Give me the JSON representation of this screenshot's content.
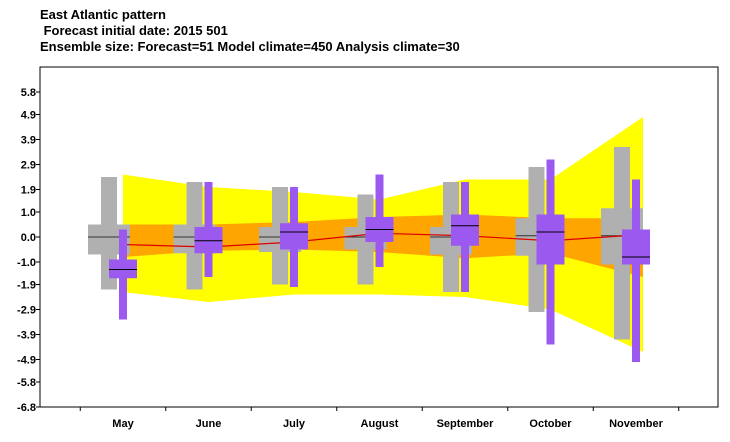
{
  "header": {
    "title": "East Atlantic pattern",
    "subtitle": " Forecast initial date: 2015 501",
    "ensemble": "Ensemble size: Forecast=51 Model climate=450 Analysis climate=30"
  },
  "colors": {
    "outer_band": "#ffff00",
    "inner_band": "#ffa500",
    "median_line": "#dd0000",
    "climate_box": "#b0b0b0",
    "forecast_box": "#9b59f0"
  },
  "chart_data": {
    "type": "box",
    "title": "East Atlantic pattern",
    "categories": [
      "May",
      "June",
      "July",
      "August",
      "September",
      "October",
      "November"
    ],
    "ylim": [
      -6.8,
      6.8
    ],
    "yticks": [
      "5.8",
      "4.9",
      "3.9",
      "2.9",
      "1.9",
      "1.0",
      "0.0",
      "-1.0",
      "-1.9",
      "-2.9",
      "-3.9",
      "-4.9",
      "-5.8",
      "-6.8"
    ],
    "ytick_values": [
      5.8,
      4.9,
      3.9,
      2.9,
      1.9,
      1.0,
      0.0,
      -1.0,
      -1.9,
      -2.9,
      -3.9,
      -4.9,
      -5.8,
      -6.8
    ],
    "analysis_climate_band": {
      "outer": {
        "high": [
          2.5,
          2.0,
          1.8,
          1.5,
          2.3,
          2.3,
          4.8
        ],
        "low": [
          -2.2,
          -2.6,
          -2.3,
          -2.3,
          -2.4,
          -2.9,
          -4.6
        ]
      },
      "inner": {
        "high": [
          0.5,
          0.5,
          0.6,
          0.8,
          0.9,
          0.75,
          0.75
        ],
        "low": [
          -0.8,
          -0.55,
          -0.5,
          -0.6,
          -0.85,
          -0.65,
          -1.6
        ]
      },
      "median": [
        -0.3,
        -0.4,
        -0.2,
        0.15,
        0.05,
        -0.15,
        0.1
      ]
    },
    "model_climate": {
      "whisker_high": [
        2.4,
        2.2,
        2.0,
        1.7,
        2.2,
        2.8,
        3.6
      ],
      "box_high": [
        0.5,
        0.5,
        0.4,
        0.4,
        0.4,
        0.75,
        1.15
      ],
      "median": [
        0.0,
        0.0,
        0.0,
        0.0,
        0.0,
        0.05,
        0.05
      ],
      "box_low": [
        -0.7,
        -0.65,
        -0.6,
        -0.5,
        -0.7,
        -0.75,
        -1.1
      ],
      "whisker_low": [
        -2.1,
        -2.1,
        -1.9,
        -1.9,
        -2.2,
        -3.0,
        -4.1
      ]
    },
    "forecast": {
      "whisker_high": [
        0.3,
        2.2,
        2.0,
        2.5,
        2.2,
        3.1,
        2.3
      ],
      "box_high": [
        -0.9,
        0.4,
        0.55,
        0.8,
        0.9,
        0.9,
        0.3
      ],
      "median": [
        -1.3,
        -0.15,
        0.2,
        0.3,
        0.45,
        0.2,
        -0.8
      ],
      "box_low": [
        -1.65,
        -0.65,
        -0.5,
        -0.2,
        -0.35,
        -1.1,
        -1.1
      ],
      "whisker_low": [
        -3.3,
        -1.6,
        -2.0,
        -1.2,
        -2.2,
        -4.3,
        -5.0
      ]
    }
  }
}
